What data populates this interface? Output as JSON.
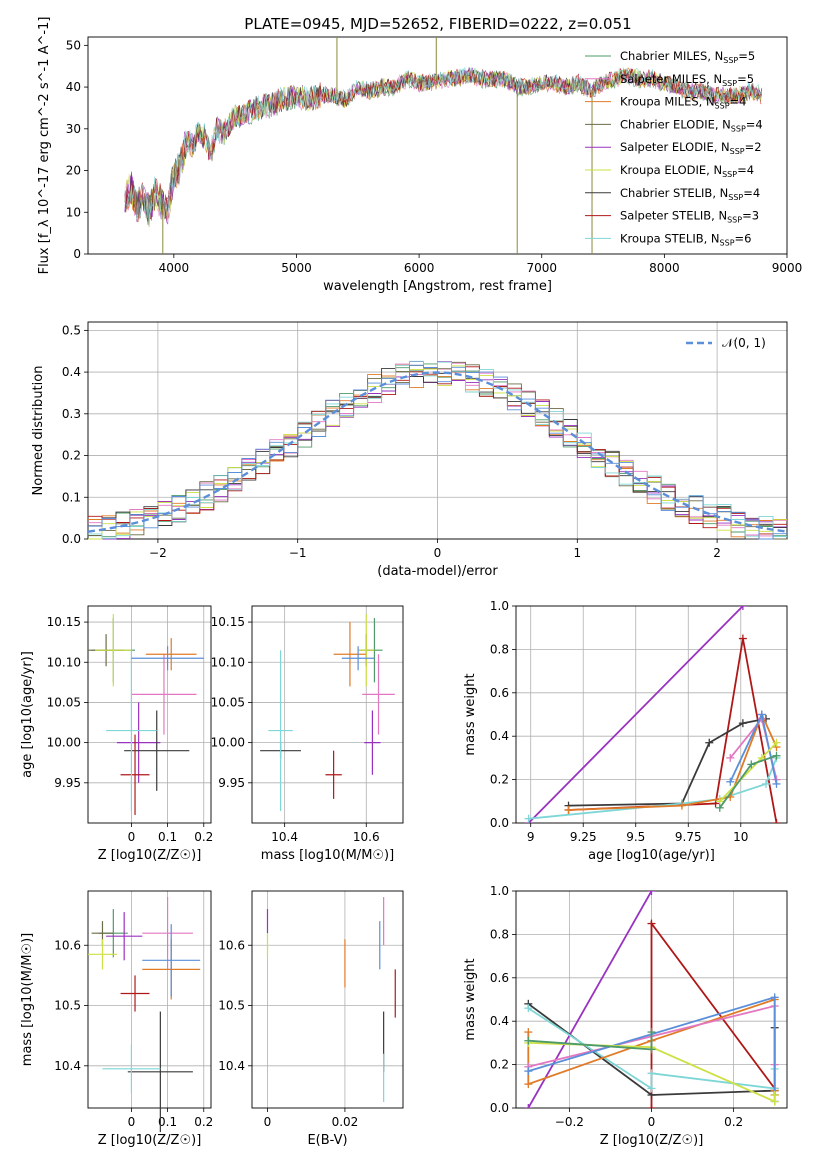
{
  "figure_title": "PLATE=0945, MJD=52652, FIBERID=0222, z=0.051",
  "palette": {
    "Chabrier MILES": "#4e9a6a",
    "Salpeter MILES": "#e377c2",
    "Kroupa MILES": "#e07b28",
    "Chabrier ELODIE": "#6b6b47",
    "Salpeter ELODIE": "#9a32c0",
    "Kroupa ELODIE": "#cde045",
    "Chabrier STELIB": "#3a3a3a",
    "Salpeter STELIB": "#b01818",
    "Kroupa STELIB": "#7fd6d6",
    "Blue": "#5b8fd9"
  },
  "chart_data": [
    {
      "id": "spectrum",
      "type": "line",
      "xlabel": "wavelength [Angstrom, rest frame]",
      "ylabel": "Flux [f_λ 10^-17 erg cm^-2 s^-1 A^-1]",
      "xlim": [
        3300,
        9000
      ],
      "ylim": [
        0,
        52
      ],
      "xticks": [
        4000,
        5000,
        6000,
        7000,
        8000,
        9000
      ],
      "yticks": [
        0,
        10,
        20,
        30,
        40,
        50
      ],
      "grid": false,
      "legend_position": "right",
      "legend": [
        "Chabrier MILES, N_SSP=5",
        "Salpeter MILES, N_SSP=5",
        "Kroupa MILES, N_SSP=4",
        "Chabrier ELODIE, N_SSP=4",
        "Salpeter ELODIE, N_SSP=2",
        "Kroupa ELODIE, N_SSP=4",
        "Chabrier STELIB, N_SSP=4",
        "Salpeter STELIB, N_SSP=3",
        "Kroupa STELIB, N_SSP=6"
      ],
      "legend_colors": [
        "#4e9a6a",
        "#e377c2",
        "#e07b28",
        "#6b6b47",
        "#9a32c0",
        "#cde045",
        "#3a3a3a",
        "#b01818",
        "#7fd6d6"
      ],
      "x": [
        3600,
        3650,
        3700,
        3750,
        3800,
        3850,
        3900,
        3950,
        4000,
        4050,
        4100,
        4150,
        4200,
        4250,
        4300,
        4350,
        4400,
        4450,
        4500,
        4600,
        4700,
        4800,
        4900,
        5000,
        5100,
        5200,
        5300,
        5400,
        5500,
        5600,
        5700,
        5800,
        5900,
        6000,
        6100,
        6200,
        6300,
        6400,
        6500,
        6600,
        6700,
        6800,
        6900,
        7000,
        7100,
        7200,
        7300,
        7400,
        7500,
        7600,
        7700,
        7800,
        7900,
        8000,
        8100,
        8200,
        8300,
        8400,
        8500,
        8600,
        8700,
        8800
      ],
      "y": [
        13,
        16,
        11,
        14,
        10,
        15,
        12,
        11,
        19,
        21,
        27,
        26,
        29,
        28,
        24,
        30,
        29,
        31,
        33,
        34,
        35,
        36,
        37,
        38,
        37,
        38,
        38,
        37,
        40,
        39,
        40,
        40,
        42,
        41,
        41,
        42,
        42,
        43,
        42,
        42,
        42,
        40,
        40,
        41,
        41,
        40,
        41,
        39,
        41,
        42,
        43,
        42,
        42,
        41,
        40,
        39,
        39,
        38,
        38,
        38,
        39,
        38
      ],
      "spikes": [
        {
          "x": 3910,
          "y": 0
        },
        {
          "x": 5330,
          "y": 52
        },
        {
          "x": 6140,
          "y": 52
        },
        {
          "x": 6800,
          "y": 0
        },
        {
          "x": 7410,
          "y": 0
        }
      ]
    },
    {
      "id": "residuals",
      "type": "histogram",
      "xlabel": "(data-model)/error",
      "ylabel": "Normed distribution",
      "xlim": [
        -2.5,
        2.5
      ],
      "ylim": [
        0,
        0.52
      ],
      "xticks": [
        -2,
        -1,
        0,
        1,
        2
      ],
      "yticks": [
        0.0,
        0.1,
        0.2,
        0.3,
        0.4,
        0.5
      ],
      "grid": true,
      "legend_position": "top-right",
      "legend": [
        "𝒩(0, 1)"
      ],
      "bin_width": 0.1
    },
    {
      "id": "age_vs_Z",
      "type": "scatter",
      "xlabel": "Z [log10(Z/Z☉)]",
      "ylabel": "age  [log10(age/yr)]",
      "xlim": [
        -0.12,
        0.22
      ],
      "ylim": [
        9.9,
        10.17
      ],
      "xticks": [
        0.0,
        0.1,
        0.2
      ],
      "yticks": [
        9.95,
        10.0,
        10.05,
        10.1,
        10.15
      ],
      "grid": true,
      "points": [
        {
          "color": "#4e9a6a",
          "x": -0.05,
          "y": 10.115,
          "xerr": 0.06,
          "yerr": 0.04
        },
        {
          "color": "#e377c2",
          "x": 0.09,
          "y": 10.06,
          "xerr": 0.09,
          "yerr": 0.05
        },
        {
          "color": "#e07b28",
          "x": 0.11,
          "y": 10.11,
          "xerr": 0.07,
          "yerr": 0.02
        },
        {
          "color": "#6b6b47",
          "x": -0.07,
          "y": 10.115,
          "xerr": 0.05,
          "yerr": 0.02
        },
        {
          "color": "#9a32c0",
          "x": 0.02,
          "y": 10.0,
          "xerr": 0.06,
          "yerr": 0.05
        },
        {
          "color": "#cde045",
          "x": -0.05,
          "y": 10.115,
          "xerr": 0.05,
          "yerr": 0.045
        },
        {
          "color": "#3a3a3a",
          "x": 0.07,
          "y": 9.99,
          "xerr": 0.09,
          "yerr": 0.05
        },
        {
          "color": "#b01818",
          "x": 0.01,
          "y": 9.96,
          "xerr": 0.04,
          "yerr": 0.05
        },
        {
          "color": "#7fd6d6",
          "x": 0.0,
          "y": 10.015,
          "xerr": 0.07,
          "yerr": 0.1
        },
        {
          "color": "#5b8fd9",
          "x": 0.1,
          "y": 10.105,
          "xerr": 0.1,
          "yerr": 0.015
        }
      ]
    },
    {
      "id": "age_vs_mass",
      "type": "scatter",
      "xlabel": "mass [log10(M/M☉)]",
      "ylabel": "",
      "xlim": [
        10.32,
        10.69
      ],
      "ylim": [
        9.9,
        10.17
      ],
      "xticks": [
        10.4,
        10.6
      ],
      "yticks": [
        9.95,
        10.0,
        10.05,
        10.1,
        10.15
      ],
      "grid": true,
      "points": [
        {
          "color": "#4e9a6a",
          "x": 10.62,
          "y": 10.115,
          "xerr": 0.02,
          "yerr": 0.04
        },
        {
          "color": "#e377c2",
          "x": 10.63,
          "y": 10.06,
          "xerr": 0.04,
          "yerr": 0.05
        },
        {
          "color": "#e07b28",
          "x": 10.56,
          "y": 10.11,
          "xerr": 0.04,
          "yerr": 0.04
        },
        {
          "color": "#6b6b47",
          "x": 10.6,
          "y": 10.115,
          "xerr": 0.02,
          "yerr": 0.02
        },
        {
          "color": "#9a32c0",
          "x": 10.615,
          "y": 10.0,
          "xerr": 0.02,
          "yerr": 0.04
        },
        {
          "color": "#cde045",
          "x": 10.6,
          "y": 10.115,
          "xerr": 0.02,
          "yerr": 0.045
        },
        {
          "color": "#3a3a3a",
          "x": 10.39,
          "y": 9.99,
          "xerr": 0.05,
          "yerr": 0.01
        },
        {
          "color": "#b01818",
          "x": 10.52,
          "y": 9.96,
          "xerr": 0.02,
          "yerr": 0.03
        },
        {
          "color": "#7fd6d6",
          "x": 10.39,
          "y": 10.015,
          "xerr": 0.03,
          "yerr": 0.1
        },
        {
          "color": "#5b8fd9",
          "x": 10.58,
          "y": 10.105,
          "xerr": 0.04,
          "yerr": 0.015
        }
      ]
    },
    {
      "id": "weight_vs_age",
      "type": "line",
      "xlabel": "age  [log10(age/yr)]",
      "ylabel": "mass weight",
      "xlim": [
        8.93,
        10.22
      ],
      "ylim": [
        0,
        1.0
      ],
      "xticks": [
        9.0,
        9.25,
        9.5,
        9.75,
        10.0
      ],
      "yticks": [
        0.0,
        0.2,
        0.4,
        0.6,
        0.8,
        1.0
      ],
      "grid": true,
      "series": [
        {
          "color": "#9a32c0",
          "x": [
            8.99,
            10.01
          ],
          "y": [
            0.0,
            1.0
          ]
        },
        {
          "color": "#b01818",
          "x": [
            9.18,
            9.88,
            10.01,
            10.17
          ],
          "y": [
            0.06,
            0.09,
            0.85,
            0.0
          ]
        },
        {
          "color": "#3a3a3a",
          "x": [
            9.18,
            9.72,
            9.85,
            10.01,
            10.12
          ],
          "y": [
            0.08,
            0.09,
            0.37,
            0.46,
            0.48
          ]
        },
        {
          "color": "#7fd6d6",
          "x": [
            8.99,
            9.72,
            9.9,
            10.12,
            10.17
          ],
          "y": [
            0.02,
            0.09,
            0.11,
            0.18,
            0.3
          ]
        },
        {
          "color": "#e07b28",
          "x": [
            9.18,
            9.72,
            9.95,
            10.1,
            10.17
          ],
          "y": [
            0.06,
            0.08,
            0.12,
            0.5,
            0.35
          ]
        },
        {
          "color": "#e377c2",
          "x": [
            9.95,
            10.1,
            10.17
          ],
          "y": [
            0.3,
            0.48,
            0.2
          ]
        },
        {
          "color": "#5b8fd9",
          "x": [
            9.95,
            10.1,
            10.17
          ],
          "y": [
            0.19,
            0.5,
            0.18
          ]
        },
        {
          "color": "#cde045",
          "x": [
            9.9,
            10.1,
            10.17
          ],
          "y": [
            0.1,
            0.3,
            0.37
          ]
        },
        {
          "color": "#4e9a6a",
          "x": [
            9.9,
            10.05,
            10.17
          ],
          "y": [
            0.07,
            0.27,
            0.31
          ]
        }
      ]
    },
    {
      "id": "mass_vs_Z",
      "type": "scatter",
      "xlabel": "Z [log10(Z/Z☉)]",
      "ylabel": "mass [log10(M/M☉)]",
      "xlim": [
        -0.12,
        0.22
      ],
      "ylim": [
        10.33,
        10.69
      ],
      "xticks": [
        0.0,
        0.1,
        0.2
      ],
      "yticks": [
        10.4,
        10.5,
        10.6
      ],
      "grid": true,
      "points": [
        {
          "color": "#4e9a6a",
          "x": -0.05,
          "y": 10.62,
          "xerr": 0.04,
          "yerr": 0.04
        },
        {
          "color": "#e377c2",
          "x": 0.1,
          "y": 10.62,
          "xerr": 0.07,
          "yerr": 0.06
        },
        {
          "color": "#e07b28",
          "x": 0.11,
          "y": 10.56,
          "xerr": 0.08,
          "yerr": 0.05
        },
        {
          "color": "#6b6b47",
          "x": -0.08,
          "y": 10.62,
          "xerr": 0.03,
          "yerr": 0.02
        },
        {
          "color": "#9a32c0",
          "x": -0.02,
          "y": 10.615,
          "xerr": 0.05,
          "yerr": 0.04
        },
        {
          "color": "#cde045",
          "x": -0.08,
          "y": 10.585,
          "xerr": 0.04,
          "yerr": 0.025
        },
        {
          "color": "#3a3a3a",
          "x": 0.08,
          "y": 10.39,
          "xerr": 0.09,
          "yerr": 0.1
        },
        {
          "color": "#b01818",
          "x": 0.01,
          "y": 10.52,
          "xerr": 0.04,
          "yerr": 0.03
        },
        {
          "color": "#7fd6d6",
          "x": 0.0,
          "y": 10.395,
          "xerr": 0.08,
          "yerr": 0.04
        },
        {
          "color": "#5b8fd9",
          "x": 0.11,
          "y": 10.575,
          "xerr": 0.08,
          "yerr": 0.06
        }
      ]
    },
    {
      "id": "mass_vs_ebv",
      "type": "scatter",
      "xlabel": "E(B-V)",
      "ylabel": "",
      "xlim": [
        -0.004,
        0.035
      ],
      "ylim": [
        10.33,
        10.69
      ],
      "xticks": [
        0.0,
        0.02
      ],
      "yticks": [
        10.4,
        10.5,
        10.6
      ],
      "grid": true,
      "points": [
        {
          "color": "#9a32c0",
          "x": 0.0,
          "y": 10.64,
          "xerr": 0.0,
          "yerr": 0.02
        },
        {
          "color": "#cde045",
          "x": 0.0,
          "y": 10.6,
          "xerr": 0.0,
          "yerr": 0.02
        },
        {
          "color": "#e07b28",
          "x": 0.02,
          "y": 10.57,
          "xerr": 0.0,
          "yerr": 0.04
        },
        {
          "color": "#5b8fd9",
          "x": 0.029,
          "y": 10.6,
          "xerr": 0.0,
          "yerr": 0.04
        },
        {
          "color": "#e377c2",
          "x": 0.03,
          "y": 10.64,
          "xerr": 0.0,
          "yerr": 0.04
        },
        {
          "color": "#b01818",
          "x": 0.033,
          "y": 10.52,
          "xerr": 0.0,
          "yerr": 0.04
        },
        {
          "color": "#3a3a3a",
          "x": 0.03,
          "y": 10.44,
          "xerr": 0.0,
          "yerr": 0.05
        },
        {
          "color": "#7fd6d6",
          "x": 0.03,
          "y": 10.38,
          "xerr": 0.0,
          "yerr": 0.04
        }
      ]
    },
    {
      "id": "weight_vs_Z",
      "type": "line",
      "xlabel": "Z [log10(Z/Z☉)]",
      "ylabel": "mass weight",
      "xlim": [
        -0.33,
        0.33
      ],
      "ylim": [
        0,
        1.0
      ],
      "xticks": [
        -0.2,
        0.0,
        0.2
      ],
      "yticks": [
        0.0,
        0.2,
        0.4,
        0.6,
        0.8,
        1.0
      ],
      "grid": true,
      "series": [
        {
          "color": "#9a32c0",
          "x": [
            -0.3,
            0.0
          ],
          "y": [
            0.0,
            1.0
          ]
        },
        {
          "color": "#b01818",
          "x": [
            0.0,
            0.0,
            0.3,
            0.3
          ],
          "y": [
            0.0,
            0.85,
            0.09,
            0.06
          ]
        },
        {
          "color": "#3a3a3a",
          "x": [
            -0.3,
            0.0,
            0.3,
            0.3
          ],
          "y": [
            0.48,
            0.06,
            0.08,
            0.37
          ]
        },
        {
          "color": "#7fd6d6",
          "x": [
            -0.3,
            0.0,
            0.0,
            0.3,
            0.3
          ],
          "y": [
            0.46,
            0.09,
            0.16,
            0.09,
            0.18
          ]
        },
        {
          "color": "#e07b28",
          "x": [
            -0.3,
            -0.3,
            0.0,
            0.3,
            0.3
          ],
          "y": [
            0.35,
            0.11,
            0.31,
            0.5,
            0.08
          ]
        },
        {
          "color": "#e377c2",
          "x": [
            -0.3,
            0.3,
            0.3
          ],
          "y": [
            0.19,
            0.47,
            0.2
          ]
        },
        {
          "color": "#5b8fd9",
          "x": [
            -0.3,
            0.3,
            0.3
          ],
          "y": [
            0.17,
            0.51,
            0.03
          ]
        },
        {
          "color": "#cde045",
          "x": [
            -0.3,
            0.0,
            0.3,
            0.3
          ],
          "y": [
            0.3,
            0.28,
            0.03,
            0.06
          ]
        },
        {
          "color": "#4e9a6a",
          "x": [
            -0.3,
            0.0,
            0.0
          ],
          "y": [
            0.31,
            0.27,
            0.35
          ]
        }
      ]
    }
  ]
}
